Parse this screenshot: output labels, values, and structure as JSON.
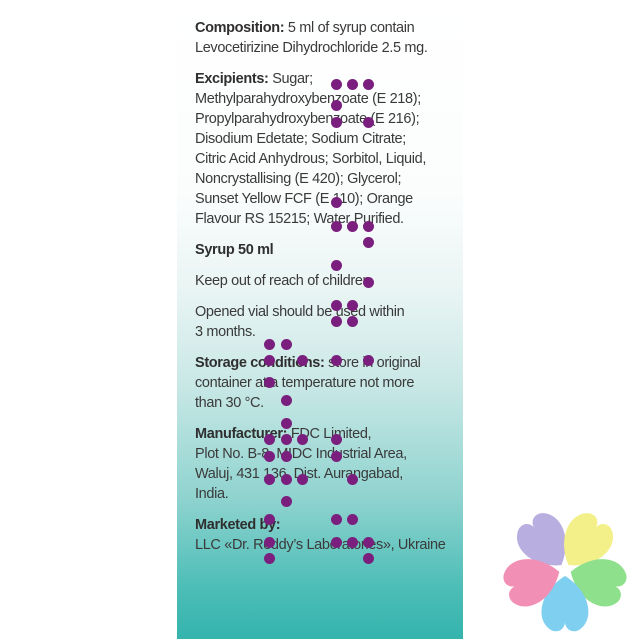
{
  "label": {
    "composition": {
      "title": "Composition:",
      "text": " 5 ml of syrup contain",
      "line2": "Levocetirizine Dihydrochloride 2.5 mg."
    },
    "excipients": {
      "title": "Excipients:",
      "lines": [
        " Sugar;",
        "Methylparahydroxybenzoate (E 218);",
        "Propylparahydroxybenzoate (E 216);",
        "Disodium Edetate; Sodium Citrate;",
        "Citric Acid Anhydrous; Sorbitol, Liquid,",
        "Noncrystallising (E 420); Glycerol;",
        "Sunset Yellow FCF (E 110); Orange",
        "Flavour RS 15215; Water Purified."
      ]
    },
    "syrup": "Syrup 50 ml",
    "keep_out": "Keep out of reach of children.",
    "opened": {
      "line1": "Opened vial should be used within",
      "line2": "3 months."
    },
    "storage": {
      "title": "Storage conditions:",
      "text": " store in original",
      "line2": "container at a temperature not more",
      "line3": "than 30 °C."
    },
    "manufacturer": {
      "title": "Manufacturer:",
      "text": " FDC Limited,",
      "line2": "Plot No. B-8, MIDC Industrial Area,",
      "line3": "Waluj, 431 136, Dist. Aurangabad,",
      "line4": "India."
    },
    "marketed": {
      "title": "Marketed by:",
      "line2": "LLC «Dr. Reddy’s Laboratories», Ukraine"
    }
  },
  "colors": {
    "braille_dot": "#7a1f7e",
    "panel_gradient_end": "#34b4ad",
    "logo_petals": [
      "#b9aee0",
      "#f3f08a",
      "#f28fb4",
      "#8fe08c",
      "#7fcff0"
    ]
  },
  "icons": {
    "braille": "braille-dots",
    "logo": "heart-clover-logo"
  }
}
